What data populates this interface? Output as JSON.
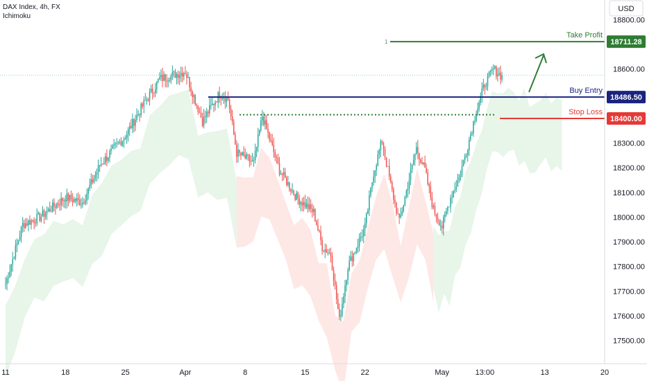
{
  "header": {
    "symbol_line": "DAX Index, 4h, FX",
    "indicator": "Ichimoku"
  },
  "currency": "USD",
  "colors": {
    "up": "#26a69a",
    "down": "#ef5350",
    "take_profit": "#2e7d32",
    "buy_entry": "#1a237e",
    "stop_loss": "#e53935",
    "cloud_bull": "#e8f5e9",
    "cloud_bear": "#fde8e6",
    "axis_text": "#131722"
  },
  "chart_data": {
    "type": "candlestick",
    "title": "DAX Index, 4h, FX",
    "indicator": "Ichimoku",
    "y_axis": {
      "side": "right",
      "range": [
        17420,
        18880
      ],
      "ticks": [
        17500,
        17600,
        17700,
        17800,
        17900,
        18000,
        18100,
        18200,
        18300,
        18400,
        18500,
        18600,
        18700,
        18800
      ],
      "tick_labels": [
        "17500.00",
        "17600.00",
        "17700.00",
        "17800.00",
        "17900.00",
        "18000.00",
        "18100.00",
        "18200.00",
        "18300.00",
        "18400.00",
        "18500.00",
        "18600.00",
        "18700.00",
        "18800.00"
      ]
    },
    "x_axis": {
      "range": [
        "2024-03-11",
        "2024-05-20"
      ],
      "ticks": [
        {
          "date": "2024-03-11",
          "label": "11"
        },
        {
          "date": "2024-03-18",
          "label": "18"
        },
        {
          "date": "2024-03-25",
          "label": "25"
        },
        {
          "date": "2024-04-01",
          "label": "Apr"
        },
        {
          "date": "2024-04-08",
          "label": "8"
        },
        {
          "date": "2024-04-15",
          "label": "15"
        },
        {
          "date": "2024-04-22",
          "label": "22"
        },
        {
          "date": "2024-05-01",
          "label": "May"
        },
        {
          "date": "2024-05-06",
          "label": "13:00"
        },
        {
          "date": "2024-05-13",
          "label": "13"
        },
        {
          "date": "2024-05-20",
          "label": "20"
        }
      ]
    },
    "price_path": [
      [
        "2024-03-11",
        17730
      ],
      [
        "2024-03-13",
        17970
      ],
      [
        "2024-03-15",
        18000
      ],
      [
        "2024-03-18",
        18080
      ],
      [
        "2024-03-20",
        18060
      ],
      [
        "2024-03-22",
        18210
      ],
      [
        "2024-03-25",
        18330
      ],
      [
        "2024-03-27",
        18450
      ],
      [
        "2024-03-29",
        18560
      ],
      [
        "2024-04-01",
        18590
      ],
      [
        "2024-04-03",
        18390
      ],
      [
        "2024-04-05",
        18500
      ],
      [
        "2024-04-06",
        18480
      ],
      [
        "2024-04-07",
        18260
      ],
      [
        "2024-04-09",
        18220
      ],
      [
        "2024-04-10",
        18410
      ],
      [
        "2024-04-12",
        18190
      ],
      [
        "2024-04-14",
        18080
      ],
      [
        "2024-04-16",
        18020
      ],
      [
        "2024-04-17",
        17880
      ],
      [
        "2024-04-18",
        17850
      ],
      [
        "2024-04-19",
        17580
      ],
      [
        "2024-04-20",
        17800
      ],
      [
        "2024-04-22",
        17960
      ],
      [
        "2024-04-23",
        18180
      ],
      [
        "2024-04-24",
        18310
      ],
      [
        "2024-04-25",
        18130
      ],
      [
        "2024-04-26",
        17980
      ],
      [
        "2024-04-28",
        18280
      ],
      [
        "2024-04-29",
        18190
      ],
      [
        "2024-04-30",
        18030
      ],
      [
        "2024-05-01",
        17960
      ],
      [
        "2024-05-02",
        18080
      ],
      [
        "2024-05-03",
        18160
      ],
      [
        "2024-05-04",
        18290
      ],
      [
        "2024-05-05",
        18430
      ],
      [
        "2024-05-06",
        18540
      ],
      [
        "2024-05-07",
        18600
      ],
      [
        "2024-05-08",
        18570
      ]
    ],
    "ichimoku_cloud": [
      {
        "from": "2024-03-11",
        "to": "2024-04-07",
        "color": "bullish"
      },
      {
        "from": "2024-04-07",
        "to": "2024-04-30",
        "color": "bearish"
      },
      {
        "from": "2024-04-30",
        "to": "2024-05-15",
        "color": "bullish"
      }
    ],
    "levels": [
      {
        "name": "Take Profit",
        "value": 18711.28,
        "label": "18711.28",
        "marker": "1"
      },
      {
        "name": "Buy Entry",
        "value": 18486.5,
        "label": "18486.50"
      },
      {
        "name": "Stop Loss",
        "value": 18400.0,
        "label": "18400.00"
      }
    ],
    "reference_line": {
      "value": 18415.0,
      "style": "dotted"
    },
    "last_price_dotted": 18575
  }
}
